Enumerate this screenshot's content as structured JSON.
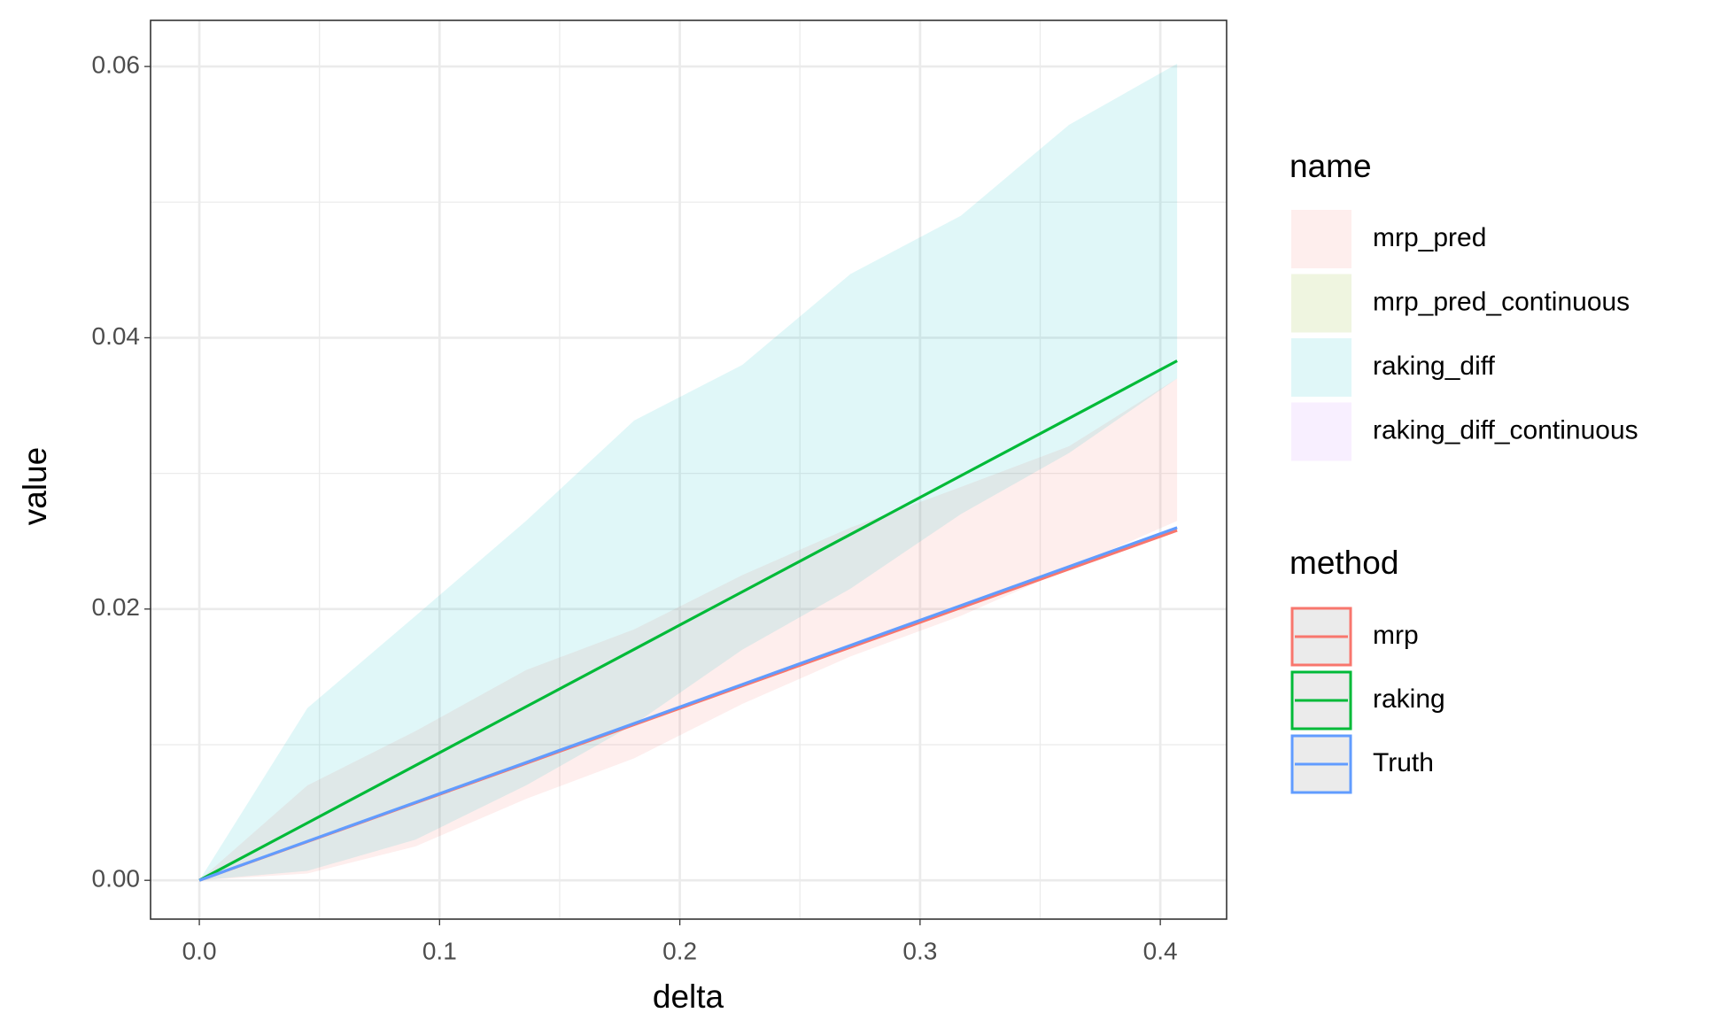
{
  "chart_data": {
    "type": "line",
    "xlabel": "delta",
    "ylabel": "value",
    "x": [
      0,
      0.045,
      0.09,
      0.136,
      0.181,
      0.226,
      0.271,
      0.317,
      0.362,
      0.407
    ],
    "xlim": [
      -0.0203,
      0.4276
    ],
    "xticks": [
      {
        "value": 0,
        "label": "0.0"
      },
      0.1,
      0.2,
      0.3,
      0.4
    ],
    "x_minor_ticks": [
      0.05,
      0.15,
      0.25,
      0.35
    ],
    "ylim": [
      -0.00286,
      0.0634
    ],
    "yticks": [
      {
        "value": 0,
        "label": "0.00"
      },
      {
        "value": 0.02,
        "label": "0.02"
      },
      {
        "value": 0.04,
        "label": "0.04"
      },
      {
        "value": 0.06,
        "label": "0.06"
      }
    ],
    "y_minor_ticks": [
      0.01,
      0.03,
      0.05
    ],
    "grid": true,
    "ribbon_legend_title": "name",
    "ribbons": [
      {
        "name": "mrp_pred",
        "color": "#F8766D",
        "lower": [
          0,
          0.0005,
          0.0025,
          0.006,
          0.009,
          0.013,
          0.0165,
          0.0195,
          0.023,
          0.0265
        ],
        "upper": [
          0,
          0.007,
          0.011,
          0.0155,
          0.0185,
          0.0225,
          0.026,
          0.029,
          0.032,
          0.037
        ]
      },
      {
        "name": "mrp_pred_continuous",
        "color": "#7CAE00"
      },
      {
        "name": "raking_diff",
        "color": "#00BFC4",
        "lower": [
          0,
          0.0007,
          0.003,
          0.007,
          0.0115,
          0.017,
          0.0215,
          0.027,
          0.0315,
          0.037
        ],
        "upper": [
          0,
          0.0127,
          0.0195,
          0.0265,
          0.0339,
          0.038,
          0.0447,
          0.049,
          0.0557,
          0.0602
        ]
      },
      {
        "name": "raking_diff_continuous",
        "color": "#C77CFF"
      }
    ],
    "line_legend_title": "method",
    "series": [
      {
        "name": "mrp",
        "color": "#F8766D",
        "values": [
          0,
          0.00285,
          0.00571,
          0.00862,
          0.01148,
          0.01433,
          0.01718,
          0.0201,
          0.02295,
          0.0258
        ]
      },
      {
        "name": "raking",
        "color": "#00BA38",
        "values": [
          0,
          0.00423,
          0.00847,
          0.0128,
          0.01703,
          0.02127,
          0.0255,
          0.02983,
          0.03406,
          0.0383
        ]
      },
      {
        "name": "Truth",
        "color": "#619CFF",
        "values": [
          0,
          0.00288,
          0.00575,
          0.00869,
          0.01157,
          0.01444,
          0.01732,
          0.02026,
          0.02313,
          0.026
        ]
      }
    ]
  }
}
